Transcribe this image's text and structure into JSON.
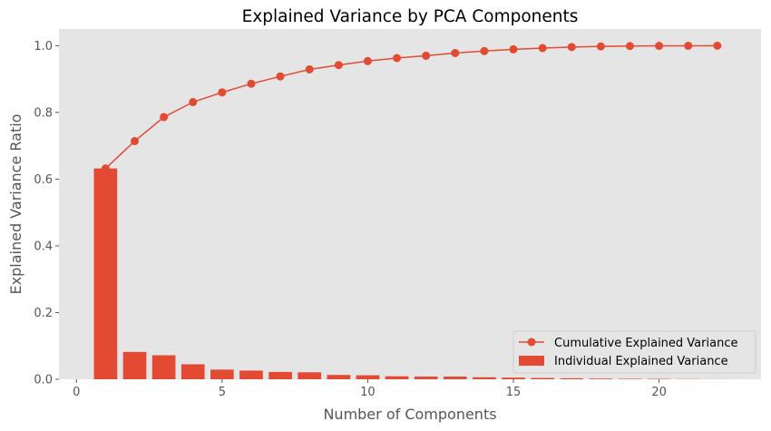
{
  "chart_data": {
    "type": "bar",
    "title": "Explained Variance by PCA Components",
    "xlabel": "Number of Components",
    "ylabel": "Explained Variance Ratio",
    "xlim": [
      -0.6,
      23.5
    ],
    "ylim": [
      0,
      1.05
    ],
    "xticks": [
      0,
      5,
      10,
      15,
      20
    ],
    "yticks": [
      0.0,
      0.2,
      0.4,
      0.6,
      0.8,
      1.0
    ],
    "grid": false,
    "legend_position": "lower-right",
    "x": [
      1,
      2,
      3,
      4,
      5,
      6,
      7,
      8,
      9,
      10,
      11,
      12,
      13,
      14,
      15,
      16,
      17,
      18,
      19,
      20,
      21,
      22
    ],
    "series": [
      {
        "name": "Individual Explained Variance",
        "kind": "bar",
        "color": "#E24A33",
        "values": [
          0.632,
          0.082,
          0.072,
          0.045,
          0.029,
          0.026,
          0.022,
          0.021,
          0.013,
          0.012,
          0.009,
          0.008,
          0.008,
          0.006,
          0.005,
          0.004,
          0.003,
          0.002,
          0.0015,
          0.0012,
          0.0006,
          0.0003
        ]
      },
      {
        "name": "Cumulative Explained Variance",
        "kind": "line",
        "color": "#E24A33",
        "values": [
          0.632,
          0.714,
          0.786,
          0.831,
          0.86,
          0.886,
          0.908,
          0.929,
          0.942,
          0.954,
          0.963,
          0.97,
          0.978,
          0.984,
          0.989,
          0.993,
          0.996,
          0.998,
          0.999,
          0.9995,
          0.9998,
          1.0
        ]
      }
    ]
  },
  "colors": {
    "plot_background": "#E5E5E5",
    "tick_label": "#555555",
    "accent": "#E24A33"
  }
}
